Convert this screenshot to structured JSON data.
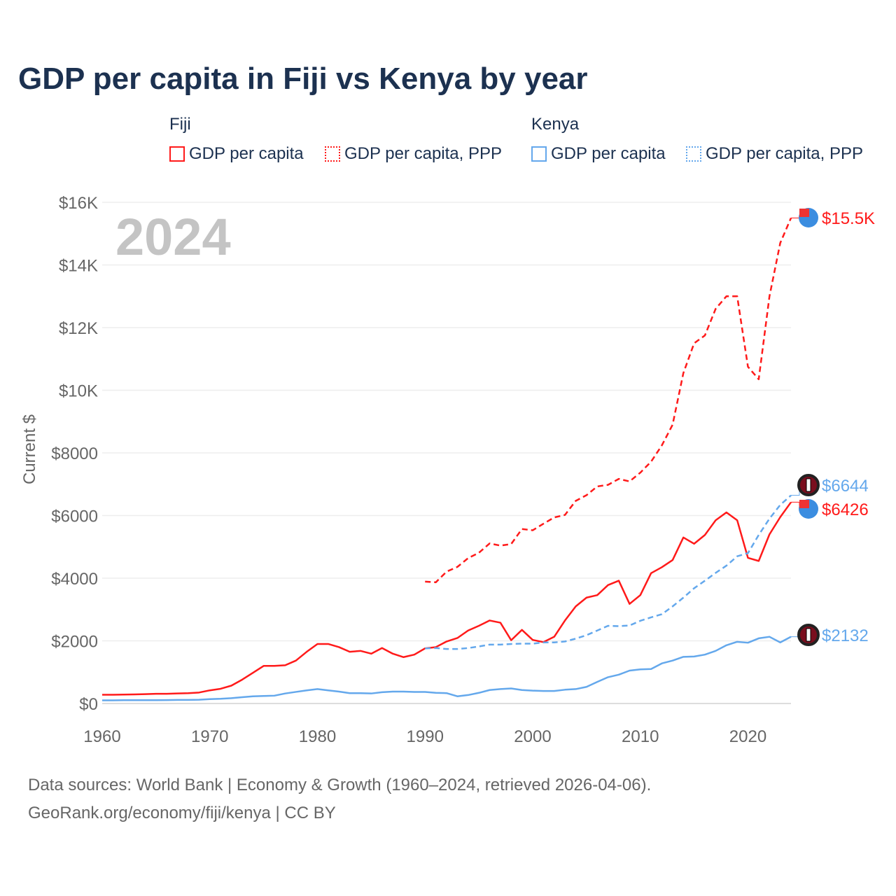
{
  "chart_data": {
    "type": "line",
    "title": "GDP per capita in Fiji vs Kenya by year",
    "ylabel": "Current $",
    "xlim": [
      1960,
      2024
    ],
    "ylim": [
      0,
      16000
    ],
    "x_ticks": [
      "1960",
      "1970",
      "1980",
      "1990",
      "2000",
      "2010",
      "2020"
    ],
    "x_tick_values": [
      1960,
      1970,
      1980,
      1990,
      2000,
      2010,
      2020
    ],
    "y_ticks": [
      "$0",
      "$2000",
      "$4000",
      "$6000",
      "$8000",
      "$10K",
      "$12K",
      "$14K",
      "$16K"
    ],
    "y_tick_values": [
      0,
      2000,
      4000,
      6000,
      8000,
      10000,
      12000,
      14000,
      16000
    ],
    "year_label": "2024",
    "legend": {
      "groups": [
        "Fiji",
        "Kenya"
      ],
      "items": [
        "GDP per capita",
        "GDP per capita, PPP",
        "GDP per capita",
        "GDP per capita, PPP"
      ]
    },
    "series": [
      {
        "name": "Fiji GDP per capita",
        "color": "#ff1a1a",
        "dash": false,
        "start": 1960,
        "end_label": "$6426",
        "values": [
          280,
          280,
          285,
          290,
          300,
          310,
          310,
          320,
          330,
          350,
          420,
          470,
          570,
          760,
          980,
          1200,
          1200,
          1220,
          1370,
          1650,
          1900,
          1900,
          1800,
          1650,
          1680,
          1590,
          1770,
          1590,
          1480,
          1560,
          1760,
          1800,
          1980,
          2090,
          2330,
          2480,
          2650,
          2580,
          2020,
          2350,
          2030,
          1960,
          2130,
          2650,
          3100,
          3380,
          3460,
          3780,
          3920,
          3180,
          3460,
          4160,
          4350,
          4580,
          5300,
          5100,
          5380,
          5850,
          6100,
          5850,
          4650,
          4550,
          5400,
          5950,
          6426
        ]
      },
      {
        "name": "Fiji GDP per capita, PPP",
        "color": "#ff1a1a",
        "dash": true,
        "start": 1990,
        "end_label": "$15.5K",
        "values": [
          3890,
          3870,
          4210,
          4360,
          4640,
          4810,
          5110,
          5040,
          5090,
          5570,
          5530,
          5740,
          5940,
          6020,
          6470,
          6650,
          6930,
          6980,
          7170,
          7090,
          7370,
          7720,
          8240,
          8900,
          10550,
          11500,
          11750,
          12600,
          13000,
          13000,
          10750,
          10350,
          13000,
          14700,
          15500
        ]
      },
      {
        "name": "Kenya GDP per capita",
        "color": "#64a8ec",
        "dash": false,
        "start": 1960,
        "end_label": "$2132",
        "values": [
          100,
          100,
          105,
          105,
          105,
          105,
          110,
          115,
          115,
          120,
          140,
          150,
          170,
          200,
          230,
          240,
          250,
          320,
          370,
          420,
          460,
          420,
          380,
          330,
          330,
          320,
          360,
          380,
          380,
          370,
          370,
          340,
          330,
          230,
          270,
          340,
          430,
          460,
          480,
          430,
          410,
          400,
          400,
          440,
          460,
          530,
          690,
          840,
          920,
          1050,
          1090,
          1100,
          1280,
          1370,
          1490,
          1500,
          1560,
          1680,
          1860,
          1970,
          1940,
          2080,
          2130,
          1950,
          2132
        ]
      },
      {
        "name": "Kenya GDP per capita, PPP",
        "color": "#64a8ec",
        "dash": true,
        "start": 1990,
        "end_label": "$6644",
        "values": [
          1760,
          1770,
          1740,
          1740,
          1770,
          1820,
          1880,
          1880,
          1900,
          1910,
          1910,
          1950,
          1950,
          1980,
          2070,
          2180,
          2330,
          2480,
          2470,
          2490,
          2640,
          2750,
          2850,
          3100,
          3380,
          3680,
          3920,
          4170,
          4400,
          4700,
          4800,
          5380,
          5900,
          6340,
          6644
        ]
      }
    ],
    "source_lines": [
      "Data sources: World Bank | Economy & Growth (1960–2024, retrieved 2026-04-06).",
      "GeoRank.org/economy/fiji/kenya | CC BY"
    ]
  }
}
